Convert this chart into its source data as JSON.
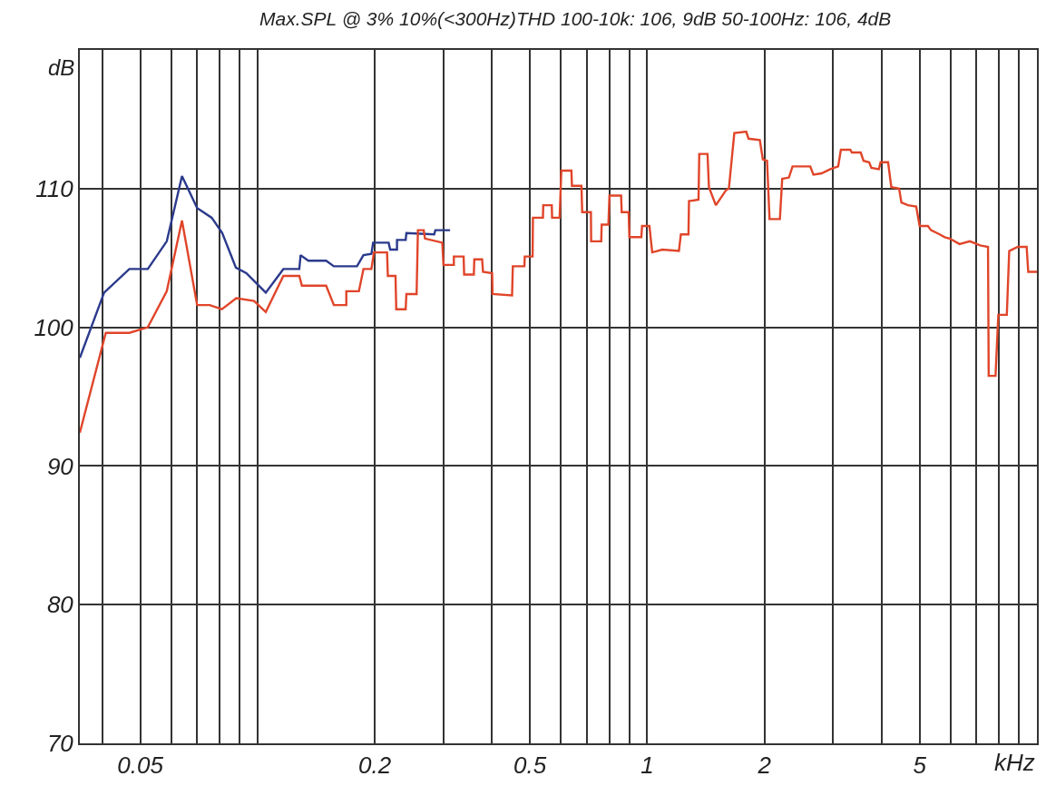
{
  "chart_data": {
    "type": "line",
    "title": "Max.SPL @ 3% 10%(<300Hz)THD 100-10k: 106, 9dB 50-100Hz: 106, 4dB",
    "xlabel": "kHz",
    "ylabel": "dB",
    "log": "x",
    "grid": true,
    "legend": false,
    "marker": "none",
    "line_style": "solid",
    "xlim": [
      0.035,
      10
    ],
    "ylim": [
      70,
      120
    ],
    "xticks": [
      {
        "value": 0.04,
        "label": null
      },
      0.05,
      {
        "value": 0.06,
        "label": null
      },
      {
        "value": 0.07,
        "label": null
      },
      {
        "value": 0.08,
        "label": null
      },
      {
        "value": 0.09,
        "label": null
      },
      {
        "value": 0.1,
        "label": null
      },
      0.2,
      {
        "value": 0.3,
        "label": null
      },
      {
        "value": 0.4,
        "label": null
      },
      0.5,
      {
        "value": 0.6,
        "label": null
      },
      {
        "value": 0.7,
        "label": null
      },
      {
        "value": 0.8,
        "label": null
      },
      {
        "value": 0.9,
        "label": null
      },
      1,
      2,
      {
        "value": 3,
        "label": null
      },
      {
        "value": 4,
        "label": null
      },
      5,
      {
        "value": 6,
        "label": null
      },
      {
        "value": 7,
        "label": null
      },
      {
        "value": 8,
        "label": null
      },
      {
        "value": 9,
        "label": null
      }
    ],
    "yticks": [
      70,
      80,
      90,
      100,
      110
    ],
    "series": [
      {
        "color": "#2b3a8c",
        "x": [
          0.035,
          0.0404,
          0.0469,
          0.0523,
          0.0585,
          0.064,
          0.07,
          0.0763,
          0.0812,
          0.088,
          0.0936,
          0.105,
          0.1165,
          0.128,
          0.129,
          0.135,
          0.15,
          0.157,
          0.18,
          0.187,
          0.196,
          0.198,
          0.217,
          0.219,
          0.228,
          0.228,
          0.24,
          0.241,
          0.284,
          0.286,
          0.312
        ],
        "values": [
          97.8,
          102.5,
          104.2,
          104.2,
          106.2,
          110.9,
          108.6,
          107.9,
          106.8,
          104.3,
          103.9,
          102.5,
          104.2,
          104.2,
          105.2,
          104.8,
          104.8,
          104.4,
          104.4,
          105.2,
          105.3,
          106.1,
          106.1,
          105.6,
          105.6,
          106.3,
          106.3,
          106.8,
          106.7,
          107.0,
          107.0
        ]
      },
      {
        "color": "#e0452a",
        "x": [
          0.035,
          0.0408,
          0.0469,
          0.0523,
          0.0585,
          0.064,
          0.07,
          0.0754,
          0.081,
          0.0882,
          0.098,
          0.105,
          0.1165,
          0.128,
          0.13,
          0.15,
          0.157,
          0.169,
          0.169,
          0.182,
          0.187,
          0.196,
          0.199,
          0.215,
          0.216,
          0.226,
          0.227,
          0.24,
          0.241,
          0.256,
          0.258,
          0.267,
          0.269,
          0.298,
          0.3,
          0.319,
          0.319,
          0.338,
          0.339,
          0.359,
          0.36,
          0.377,
          0.379,
          0.4,
          0.401,
          0.45,
          0.452,
          0.484,
          0.485,
          0.508,
          0.509,
          0.54,
          0.541,
          0.569,
          0.57,
          0.596,
          0.602,
          0.639,
          0.641,
          0.678,
          0.681,
          0.717,
          0.718,
          0.762,
          0.764,
          0.795,
          0.8,
          0.857,
          0.86,
          0.896,
          0.9,
          0.966,
          0.97,
          1.013,
          1.03,
          1.093,
          1.206,
          1.22,
          1.276,
          1.28,
          1.354,
          1.36,
          1.428,
          1.44,
          1.5,
          1.594,
          1.62,
          1.673,
          1.795,
          1.82,
          1.945,
          1.98,
          2.03,
          2.06,
          2.19,
          2.22,
          2.31,
          2.36,
          2.62,
          2.67,
          2.8,
          2.95,
          3.09,
          3.14,
          3.32,
          3.35,
          3.53,
          3.59,
          3.71,
          3.76,
          3.93,
          3.97,
          4.15,
          4.23,
          4.43,
          4.49,
          4.67,
          4.9,
          5.0,
          5.25,
          5.35,
          5.63,
          5.8,
          5.97,
          6.33,
          6.73,
          7.15,
          7.49,
          7.52,
          7.83,
          7.96,
          8.37,
          8.49,
          8.93,
          9.41,
          9.5,
          10
        ],
        "values": [
          92.4,
          99.6,
          99.6,
          100.0,
          102.6,
          107.7,
          101.6,
          101.6,
          101.3,
          102.1,
          101.9,
          101.1,
          103.7,
          103.7,
          103.0,
          103.0,
          101.6,
          101.6,
          102.6,
          102.6,
          104.2,
          104.2,
          105.4,
          105.4,
          103.7,
          103.7,
          101.3,
          101.3,
          102.4,
          102.4,
          107.0,
          107.0,
          106.4,
          106.1,
          104.5,
          104.5,
          105.1,
          105.1,
          103.8,
          103.8,
          104.9,
          104.9,
          104.0,
          103.9,
          102.4,
          102.3,
          104.4,
          104.4,
          105.1,
          105.1,
          107.9,
          107.9,
          108.8,
          108.8,
          107.9,
          107.9,
          111.3,
          111.3,
          110.2,
          110.2,
          108.3,
          108.3,
          106.2,
          106.2,
          107.4,
          107.4,
          109.5,
          109.5,
          108.3,
          108.3,
          106.5,
          106.5,
          107.3,
          107.3,
          105.4,
          105.6,
          105.5,
          106.7,
          106.7,
          109.1,
          109.2,
          112.5,
          112.5,
          110.1,
          108.8,
          109.9,
          110.0,
          114.0,
          114.1,
          113.6,
          113.5,
          112.1,
          112.0,
          107.8,
          107.8,
          110.7,
          110.8,
          111.6,
          111.6,
          111.0,
          111.1,
          111.4,
          111.6,
          112.8,
          112.8,
          112.6,
          112.6,
          112.0,
          111.9,
          111.5,
          111.4,
          111.9,
          111.9,
          110.1,
          110.0,
          109.0,
          108.8,
          108.7,
          107.3,
          107.3,
          107.0,
          106.7,
          106.5,
          106.4,
          106.0,
          106.2,
          105.9,
          105.8,
          96.5,
          96.5,
          100.9,
          100.9,
          105.5,
          105.8,
          105.8,
          104.0,
          104.0
        ]
      }
    ]
  }
}
